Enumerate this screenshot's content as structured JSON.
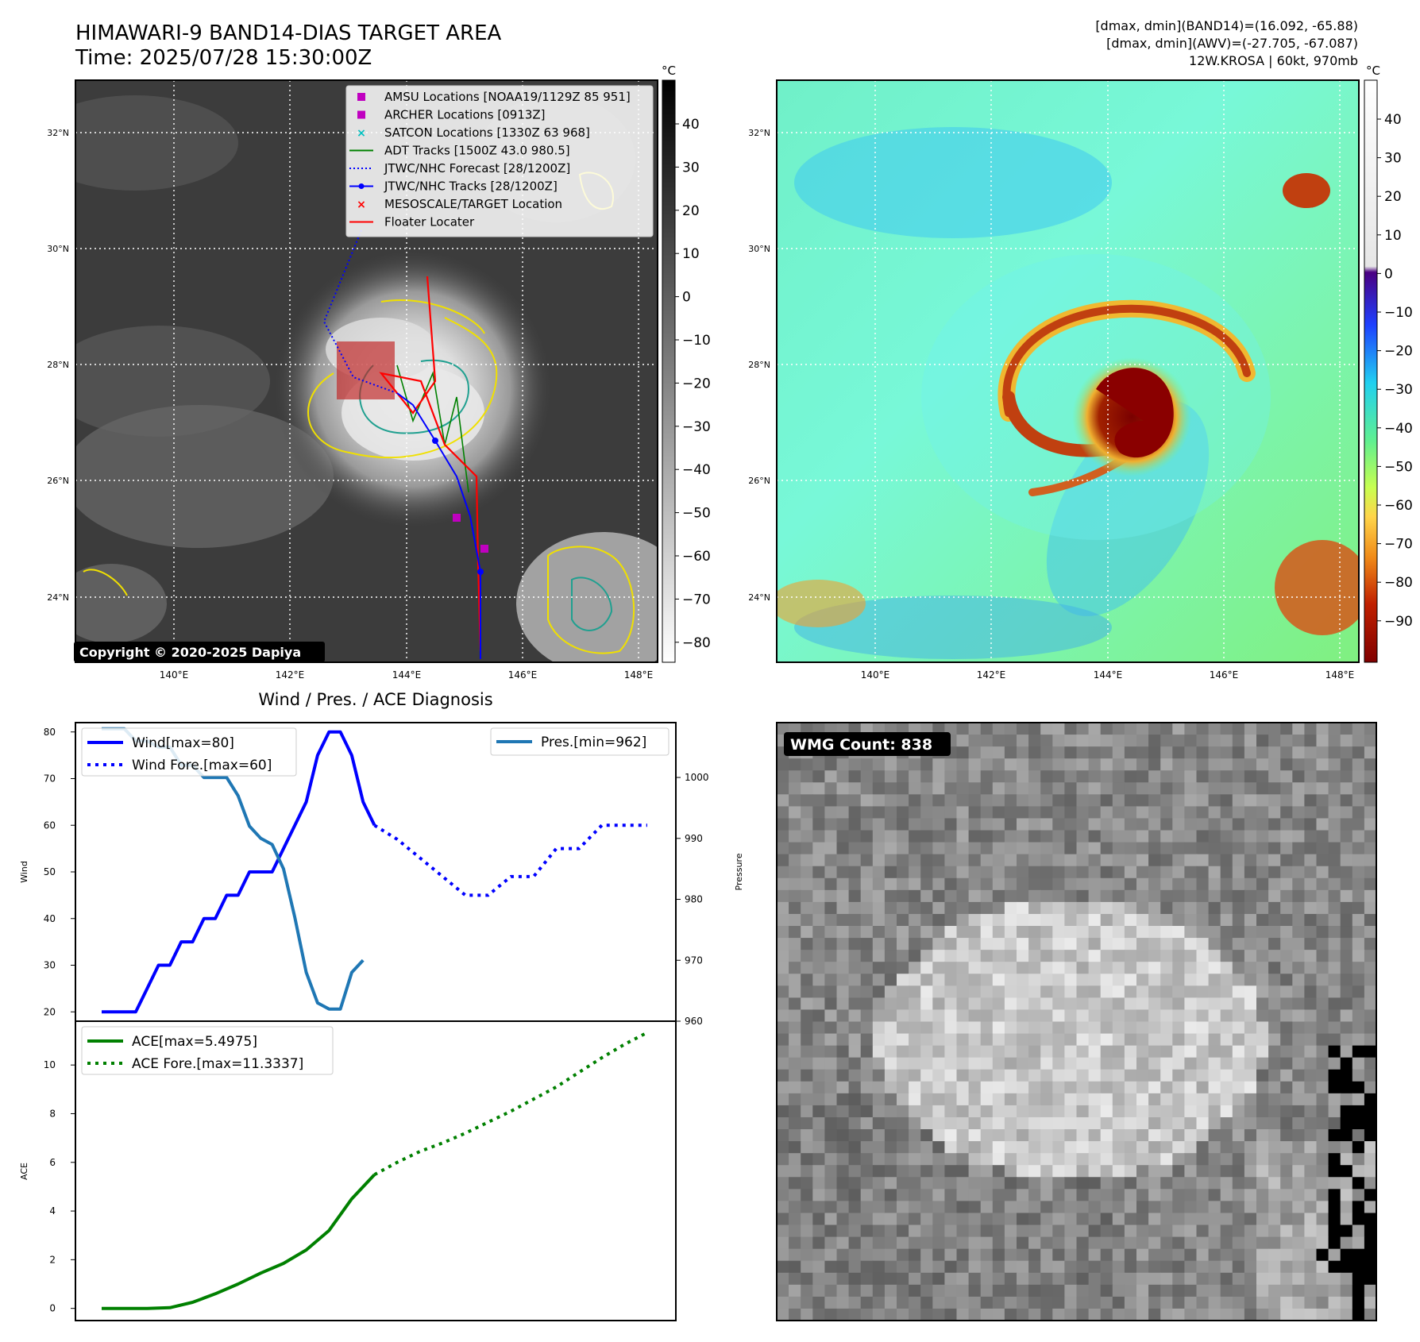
{
  "header": {
    "title": "HIMAWARI-9 BAND14-DIAS TARGET AREA",
    "time": "Time: 2025/07/28 15:30:00Z",
    "stat1": "[dmax, dmin](BAND14)=(16.092, -65.88)",
    "stat2": "[dmax, dmin](AWV)=(-27.705, -67.087)",
    "stat3": "12W.KROSA | 60kt, 970mb"
  },
  "copyright": "Copyright © 2020-2025 Dapiya",
  "map_axes": {
    "lat_labels": [
      "32°N",
      "30°N",
      "28°N",
      "26°N",
      "24°N"
    ],
    "lon_labels": [
      "140°E",
      "142°E",
      "144°E",
      "146°E",
      "148°E"
    ]
  },
  "colorbar_ir": {
    "unit": "°C",
    "ticks": [
      "40",
      "30",
      "20",
      "10",
      "0",
      "−10",
      "−20",
      "−30",
      "−40",
      "−50",
      "−60",
      "−70",
      "−80"
    ]
  },
  "colorbar_wv": {
    "unit": "°C",
    "ticks": [
      "40",
      "30",
      "20",
      "10",
      "0",
      "−10",
      "−20",
      "−30",
      "−40",
      "−50",
      "−60",
      "−70",
      "−80",
      "−90"
    ]
  },
  "legend": {
    "items": [
      {
        "label": "AMSU Locations [NOAA19/1129Z 85 951]",
        "color": "#c000c0",
        "style": "square"
      },
      {
        "label": "ARCHER Locations [0913Z]",
        "color": "#c000c0",
        "style": "square"
      },
      {
        "label": "SATCON Locations [1330Z 63 968]",
        "color": "#00c0c0",
        "style": "x"
      },
      {
        "label": "ADT Tracks [1500Z 43.0 980.5]",
        "color": "#008000",
        "style": "line"
      },
      {
        "label": "JTWC/NHC Forecast [28/1200Z]",
        "color": "#0000ff",
        "style": "dotted"
      },
      {
        "label": "JTWC/NHC Tracks [28/1200Z]",
        "color": "#0000ff",
        "style": "line-dot"
      },
      {
        "label": "MESOSCALE/TARGET Location",
        "color": "#ff0000",
        "style": "x"
      },
      {
        "label": "Floater Locater",
        "color": "#ff0000",
        "style": "line"
      }
    ]
  },
  "wmg": {
    "label": "WMG Count: 838"
  },
  "chart_data": [
    {
      "type": "line",
      "title": "Wind / Pres. / ACE Diagnosis",
      "ylabel": "Wind",
      "y2label": "Pressure",
      "ylim": [
        18,
        82
      ],
      "y2lim": [
        960,
        1009
      ],
      "yticks": [
        20,
        30,
        40,
        50,
        60,
        70,
        80
      ],
      "y2ticks": [
        960,
        970,
        980,
        990,
        1000
      ],
      "x": [
        0,
        1,
        2,
        3,
        4,
        5,
        6,
        7,
        8,
        9,
        10,
        11,
        12,
        13,
        14,
        15,
        16,
        17,
        18,
        19,
        20,
        21,
        22,
        23,
        24,
        25,
        26,
        27,
        28,
        29,
        30,
        31,
        32,
        33,
        34,
        35,
        36,
        37,
        38,
        39,
        40,
        41,
        42,
        43,
        44,
        45,
        46,
        47,
        48
      ],
      "series": [
        {
          "name": "Wind[max=80]",
          "axis": "left",
          "color": "#0000ff",
          "style": "solid",
          "x": [
            0,
            1,
            2,
            3,
            4,
            5,
            6,
            7,
            8,
            9,
            10,
            11,
            12,
            13,
            14,
            15,
            16,
            17,
            18,
            19,
            20,
            21,
            22,
            23,
            24
          ],
          "values": [
            20,
            20,
            20,
            20,
            25,
            30,
            30,
            35,
            35,
            40,
            40,
            45,
            45,
            50,
            50,
            50,
            55,
            60,
            65,
            75,
            80,
            80,
            75,
            65,
            60
          ]
        },
        {
          "name": "Wind Fore.[max=60]",
          "axis": "left",
          "color": "#0000ff",
          "style": "dotted",
          "x": [
            24,
            26,
            28,
            30,
            32,
            34,
            36,
            38,
            40,
            42,
            44,
            46,
            48
          ],
          "values": [
            60,
            57,
            53,
            49,
            45,
            45,
            49,
            49,
            55,
            55,
            60,
            60,
            60
          ]
        },
        {
          "name": "Pres.[min=962]",
          "axis": "right",
          "color": "#1f77b4",
          "style": "solid",
          "x": [
            0,
            1,
            2,
            3,
            4,
            5,
            6,
            7,
            8,
            9,
            10,
            11,
            12,
            13,
            14,
            15,
            16,
            17,
            18,
            19,
            20,
            21,
            22,
            23
          ],
          "values": [
            1008,
            1008,
            1008,
            1006,
            1006,
            1005,
            1005,
            1002,
            1002,
            1000,
            1000,
            1000,
            997,
            992,
            990,
            989,
            985,
            977,
            968,
            963,
            962,
            962,
            968,
            970
          ]
        },
        {
          "name": "ACE[max=5.4975]",
          "axis": "left2",
          "color": "#008000",
          "style": "solid",
          "x": [
            0,
            2,
            4,
            6,
            8,
            10,
            12,
            14,
            16,
            18,
            20,
            22,
            24
          ],
          "values": [
            0,
            0,
            0,
            0.03,
            0.25,
            0.6,
            1.0,
            1.45,
            1.85,
            2.4,
            3.2,
            4.5,
            5.4975
          ]
        },
        {
          "name": "ACE Fore.[max=11.3337]",
          "axis": "left2",
          "color": "#008000",
          "style": "dotted",
          "x": [
            24,
            26,
            28,
            30,
            32,
            34,
            36,
            38,
            40,
            42,
            44,
            46,
            48
          ],
          "values": [
            5.4975,
            6.0,
            6.45,
            6.8,
            7.2,
            7.65,
            8.1,
            8.6,
            9.1,
            9.7,
            10.3,
            10.85,
            11.3337
          ]
        }
      ],
      "ace_ylabel": "ACE",
      "ace_ylim": [
        -0.5,
        11.8
      ],
      "ace_yticks": [
        0,
        2,
        4,
        6,
        8,
        10
      ]
    }
  ]
}
